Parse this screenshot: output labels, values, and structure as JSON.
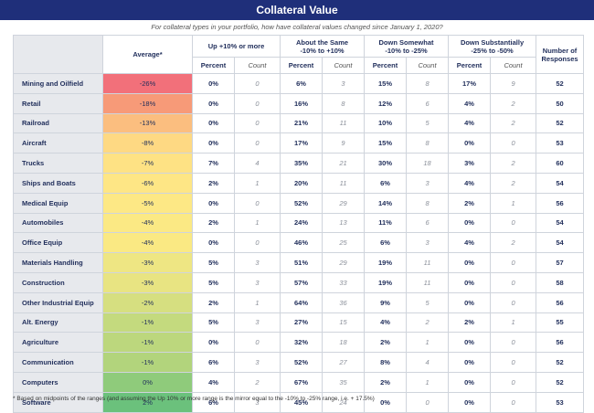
{
  "title": "Collateral Value",
  "subtitle": "For collateral types in your portfolio, how have collateral values changed since January 1, 2020?",
  "headers": {
    "average": "Average*",
    "groups": [
      "Up +10% or more",
      "About the Same\n-10% to +10%",
      "Down Somewhat\n-10% to -25%",
      "Down Substantially\n-25% to -50%"
    ],
    "percent": "Percent",
    "count": "Count",
    "responses": "Number of Responses"
  },
  "rows": [
    {
      "category": "Mining and Oilfield",
      "average": "-26%",
      "color": "#f2707a",
      "up": [
        "0%",
        "0"
      ],
      "same": [
        "6%",
        "3"
      ],
      "somewhat": [
        "15%",
        "8"
      ],
      "substantial": [
        "17%",
        "9"
      ],
      "responses": "52"
    },
    {
      "category": "Retail",
      "average": "-18%",
      "color": "#f79a78",
      "up": [
        "0%",
        "0"
      ],
      "same": [
        "16%",
        "8"
      ],
      "somewhat": [
        "12%",
        "6"
      ],
      "substantial": [
        "4%",
        "2"
      ],
      "responses": "50"
    },
    {
      "category": "Railroad",
      "average": "-13%",
      "color": "#fbbe7f",
      "up": [
        "0%",
        "0"
      ],
      "same": [
        "21%",
        "11"
      ],
      "somewhat": [
        "10%",
        "5"
      ],
      "substantial": [
        "4%",
        "2"
      ],
      "responses": "52"
    },
    {
      "category": "Aircraft",
      "average": "-8%",
      "color": "#fed983",
      "up": [
        "0%",
        "0"
      ],
      "same": [
        "17%",
        "9"
      ],
      "somewhat": [
        "15%",
        "8"
      ],
      "substantial": [
        "0%",
        "0"
      ],
      "responses": "53"
    },
    {
      "category": "Trucks",
      "average": "-7%",
      "color": "#fee284",
      "up": [
        "7%",
        "4"
      ],
      "same": [
        "35%",
        "21"
      ],
      "somewhat": [
        "30%",
        "18"
      ],
      "substantial": [
        "3%",
        "2"
      ],
      "responses": "60"
    },
    {
      "category": "Ships and Boats",
      "average": "-6%",
      "color": "#fee685",
      "up": [
        "2%",
        "1"
      ],
      "same": [
        "20%",
        "11"
      ],
      "somewhat": [
        "6%",
        "3"
      ],
      "substantial": [
        "4%",
        "2"
      ],
      "responses": "54"
    },
    {
      "category": "Medical Equip",
      "average": "-5%",
      "color": "#fde885",
      "up": [
        "0%",
        "0"
      ],
      "same": [
        "52%",
        "29"
      ],
      "somewhat": [
        "14%",
        "8"
      ],
      "substantial": [
        "2%",
        "1"
      ],
      "responses": "56"
    },
    {
      "category": "Automobiles",
      "average": "-4%",
      "color": "#fbe984",
      "up": [
        "2%",
        "1"
      ],
      "same": [
        "24%",
        "13"
      ],
      "somewhat": [
        "11%",
        "6"
      ],
      "substantial": [
        "0%",
        "0"
      ],
      "responses": "54"
    },
    {
      "category": "Office Equip",
      "average": "-4%",
      "color": "#fae983",
      "up": [
        "0%",
        "0"
      ],
      "same": [
        "46%",
        "25"
      ],
      "somewhat": [
        "6%",
        "3"
      ],
      "substantial": [
        "4%",
        "2"
      ],
      "responses": "54"
    },
    {
      "category": "Materials Handling",
      "average": "-3%",
      "color": "#eee683",
      "up": [
        "5%",
        "3"
      ],
      "same": [
        "51%",
        "29"
      ],
      "somewhat": [
        "19%",
        "11"
      ],
      "substantial": [
        "0%",
        "0"
      ],
      "responses": "57"
    },
    {
      "category": "Construction",
      "average": "-3%",
      "color": "#e8e482",
      "up": [
        "5%",
        "3"
      ],
      "same": [
        "57%",
        "33"
      ],
      "somewhat": [
        "19%",
        "11"
      ],
      "substantial": [
        "0%",
        "0"
      ],
      "responses": "58"
    },
    {
      "category": "Other Industrial Equip",
      "average": "-2%",
      "color": "#d6df80",
      "up": [
        "2%",
        "1"
      ],
      "same": [
        "64%",
        "36"
      ],
      "somewhat": [
        "9%",
        "5"
      ],
      "substantial": [
        "0%",
        "0"
      ],
      "responses": "56"
    },
    {
      "category": "Alt. Energy",
      "average": "-1%",
      "color": "#c4da7e",
      "up": [
        "5%",
        "3"
      ],
      "same": [
        "27%",
        "15"
      ],
      "somewhat": [
        "4%",
        "2"
      ],
      "substantial": [
        "2%",
        "1"
      ],
      "responses": "55"
    },
    {
      "category": "Agriculture",
      "average": "-1%",
      "color": "#bcd77d",
      "up": [
        "0%",
        "0"
      ],
      "same": [
        "32%",
        "18"
      ],
      "somewhat": [
        "2%",
        "1"
      ],
      "substantial": [
        "0%",
        "0"
      ],
      "responses": "56"
    },
    {
      "category": "Communication",
      "average": "-1%",
      "color": "#b2d47c",
      "up": [
        "6%",
        "3"
      ],
      "same": [
        "52%",
        "27"
      ],
      "somewhat": [
        "8%",
        "4"
      ],
      "substantial": [
        "0%",
        "0"
      ],
      "responses": "52"
    },
    {
      "category": "Computers",
      "average": "0%",
      "color": "#8fcb7b",
      "up": [
        "4%",
        "2"
      ],
      "same": [
        "67%",
        "35"
      ],
      "somewhat": [
        "2%",
        "1"
      ],
      "substantial": [
        "0%",
        "0"
      ],
      "responses": "52"
    },
    {
      "category": "Software",
      "average": "2%",
      "color": "#6bc17c",
      "up": [
        "6%",
        "3"
      ],
      "same": [
        "45%",
        "24"
      ],
      "somewhat": [
        "0%",
        "0"
      ],
      "substantial": [
        "0%",
        "0"
      ],
      "responses": "53"
    }
  ],
  "footnote": "* Based on midpoints of the ranges (and assuming the Up 10% or more range is the mirror equal to the -10% to -25% range, i.e. + 17.5%)"
}
